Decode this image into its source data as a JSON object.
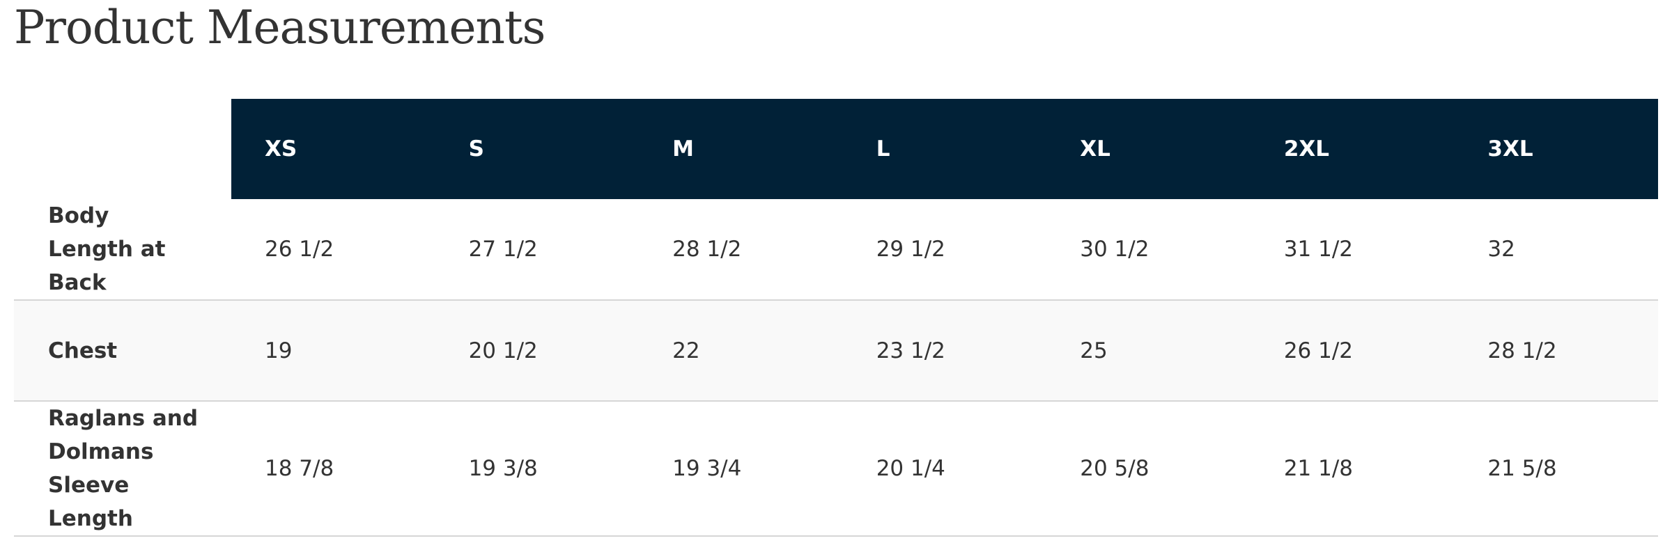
{
  "header": {
    "title": "Product Measurements"
  },
  "table": {
    "columns": [
      "XS",
      "S",
      "M",
      "L",
      "XL",
      "2XL",
      "3XL"
    ],
    "rows": [
      {
        "label": "Body Length at Back",
        "values": [
          "26 1/2",
          "27 1/2",
          "28 1/2",
          "29 1/2",
          "30 1/2",
          "31 1/2",
          "32"
        ]
      },
      {
        "label": "Chest",
        "values": [
          "19",
          "20 1/2",
          "22",
          "23 1/2",
          "25",
          "26 1/2",
          "28 1/2"
        ]
      },
      {
        "label": "Raglans and Dolmans Sleeve Length",
        "values": [
          "18 7/8",
          "19 3/8",
          "19 3/4",
          "20 1/4",
          "20 5/8",
          "21 1/8",
          "21 5/8"
        ]
      }
    ]
  }
}
